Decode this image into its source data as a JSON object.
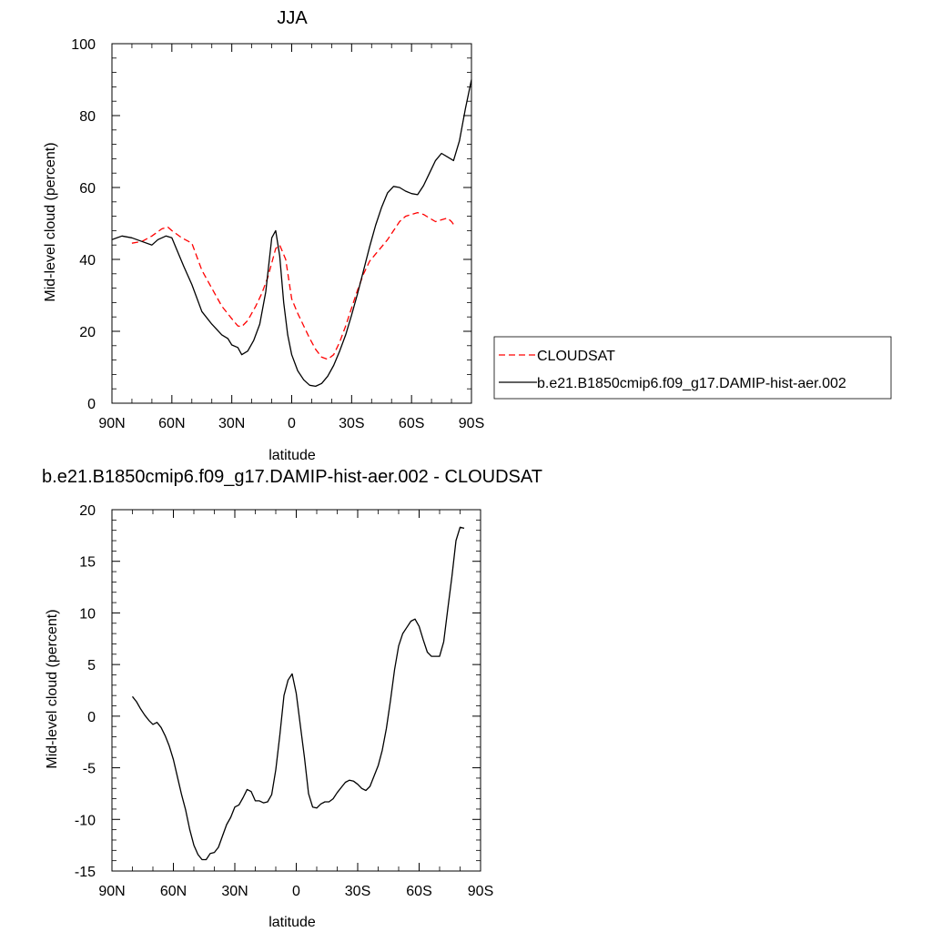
{
  "chart_data": [
    {
      "type": "line",
      "title": "JJA",
      "xlabel": "latitude",
      "ylabel": "Mid-level cloud (percent)",
      "xlim": [
        90,
        -90
      ],
      "ylim": [
        0,
        100
      ],
      "x_ticks": [
        90,
        60,
        30,
        0,
        -30,
        -60,
        -90
      ],
      "x_tick_labels": [
        "90N",
        "60N",
        "30N",
        "0",
        "30S",
        "60S",
        "90S"
      ],
      "y_ticks": [
        0,
        20,
        40,
        60,
        80,
        100
      ],
      "y_tick_labels": [
        "0",
        "20",
        "40",
        "60",
        "80",
        "100"
      ],
      "grid": false,
      "legend_position": "right",
      "series": [
        {
          "name": "CLOUDSAT",
          "color": "#ff0000",
          "dash": "dashed",
          "x": [
            80,
            75,
            70,
            65,
            62,
            60,
            55,
            50,
            45,
            40,
            35,
            30,
            27,
            25,
            22,
            18,
            15,
            12,
            10,
            8,
            6,
            3,
            0,
            -3,
            -6,
            -9,
            -12,
            -15,
            -18,
            -21,
            -24,
            -27,
            -30,
            -33,
            -36,
            -39,
            -42,
            -45,
            -48,
            -51,
            -54,
            -57,
            -60,
            -63,
            -66,
            -69,
            -72,
            -75,
            -78,
            -80,
            -82
          ],
          "values": [
            44.5,
            45,
            46.5,
            48.5,
            49,
            48,
            46,
            44.5,
            37,
            32,
            27,
            23.5,
            21.5,
            21.3,
            23,
            27,
            30.5,
            35,
            39,
            43,
            44,
            40,
            29,
            25,
            21.5,
            18,
            15,
            12.8,
            12.2,
            13.5,
            17,
            21.5,
            26.5,
            31.5,
            36,
            39.5,
            41.5,
            43.5,
            45.5,
            48,
            50.5,
            52,
            52.5,
            53,
            52.5,
            51.5,
            50.5,
            51,
            51.5,
            50.5,
            49
          ]
        },
        {
          "name": "b.e21.B1850cmip6.f09_g17.DAMIP-hist-aer.002",
          "color": "#000000",
          "dash": "solid",
          "x": [
            90,
            85,
            80,
            75,
            70,
            67,
            63,
            60,
            57,
            54,
            50,
            45,
            40,
            35,
            32,
            30,
            27,
            25,
            22,
            19,
            16,
            13,
            10,
            8,
            6,
            4,
            2,
            0,
            -3,
            -6,
            -9,
            -12,
            -15,
            -18,
            -21,
            -24,
            -27,
            -30,
            -33,
            -36,
            -39,
            -42,
            -45,
            -48,
            -51,
            -54,
            -57,
            -60,
            -63,
            -66,
            -69,
            -72,
            -75,
            -78,
            -81,
            -84,
            -87,
            -90
          ],
          "values": [
            45.5,
            46.5,
            46,
            45,
            44,
            45.5,
            46.5,
            46,
            42,
            38,
            33,
            25.5,
            22,
            19,
            18,
            16.2,
            15.5,
            13.5,
            14.5,
            17.5,
            22,
            31,
            46,
            48,
            41,
            28,
            19,
            13.5,
            9,
            6.5,
            5,
            4.7,
            5.5,
            7.5,
            10.5,
            14.5,
            19,
            24.5,
            30.5,
            37,
            43.5,
            49.5,
            54.5,
            58.5,
            60.3,
            60,
            59,
            58.3,
            58,
            60.5,
            64,
            67.5,
            69.5,
            68.5,
            67.5,
            73,
            82,
            90
          ]
        }
      ]
    },
    {
      "type": "line",
      "title": "b.e21.B1850cmip6.f09_g17.DAMIP-hist-aer.002 - CLOUDSAT",
      "xlabel": "latitude",
      "ylabel": "Mid-level cloud (percent)",
      "xlim": [
        90,
        -90
      ],
      "ylim": [
        -15,
        20
      ],
      "x_ticks": [
        90,
        60,
        30,
        0,
        -30,
        -60,
        -90
      ],
      "x_tick_labels": [
        "90N",
        "60N",
        "30N",
        "0",
        "30S",
        "60S",
        "90S"
      ],
      "y_ticks": [
        -15,
        -10,
        -5,
        0,
        5,
        10,
        15,
        20
      ],
      "y_tick_labels": [
        "-15",
        "-10",
        "-5",
        "0",
        "5",
        "10",
        "15",
        "20"
      ],
      "grid": false,
      "series": [
        {
          "color": "#000000",
          "dash": "solid",
          "x": [
            80,
            78,
            76,
            74,
            72,
            70,
            68,
            66,
            64,
            62,
            60,
            58,
            56,
            54,
            52,
            50,
            48,
            46,
            44,
            42,
            40,
            38,
            36,
            34,
            32,
            30,
            28,
            26,
            24,
            22,
            20,
            18,
            16,
            14,
            12,
            10,
            8,
            6,
            4,
            2,
            0,
            -2,
            -4,
            -6,
            -8,
            -10,
            -12,
            -14,
            -16,
            -18,
            -20,
            -22,
            -24,
            -26,
            -28,
            -30,
            -32,
            -34,
            -36,
            -38,
            -40,
            -42,
            -44,
            -46,
            -48,
            -50,
            -52,
            -54,
            -56,
            -58,
            -60,
            -62,
            -64,
            -66,
            -68,
            -70,
            -72,
            -74,
            -76,
            -78,
            -80,
            -82
          ],
          "values": [
            1.9,
            1.4,
            0.7,
            0.1,
            -0.4,
            -0.8,
            -0.6,
            -1.1,
            -1.9,
            -2.9,
            -4.2,
            -5.9,
            -7.6,
            -9.1,
            -11,
            -12.5,
            -13.4,
            -13.9,
            -13.9,
            -13.3,
            -13.2,
            -12.7,
            -11.6,
            -10.5,
            -9.8,
            -8.8,
            -8.6,
            -7.9,
            -7.1,
            -7.3,
            -8.2,
            -8.2,
            -8.4,
            -8.3,
            -7.6,
            -5.2,
            -1.8,
            2,
            3.5,
            4.1,
            2.2,
            -0.9,
            -4,
            -7.5,
            -8.8,
            -8.9,
            -8.5,
            -8.3,
            -8.3,
            -8,
            -7.4,
            -6.9,
            -6.4,
            -6.2,
            -6.3,
            -6.6,
            -7,
            -7.2,
            -6.8,
            -5.8,
            -4.8,
            -3.3,
            -1.2,
            1.5,
            4.5,
            6.8,
            8,
            8.6,
            9.2,
            9.4,
            8.7,
            7.4,
            6.2,
            5.8,
            5.8,
            5.8,
            7.2,
            10.4,
            13.5,
            17,
            18.3,
            18.2
          ]
        }
      ]
    }
  ],
  "legend": {
    "entries": [
      {
        "label": "CLOUDSAT",
        "color": "#ff0000",
        "dash": "dashed"
      },
      {
        "label": "b.e21.B1850cmip6.f09_g17.DAMIP-hist-aer.002",
        "color": "#000000",
        "dash": "solid"
      }
    ]
  }
}
